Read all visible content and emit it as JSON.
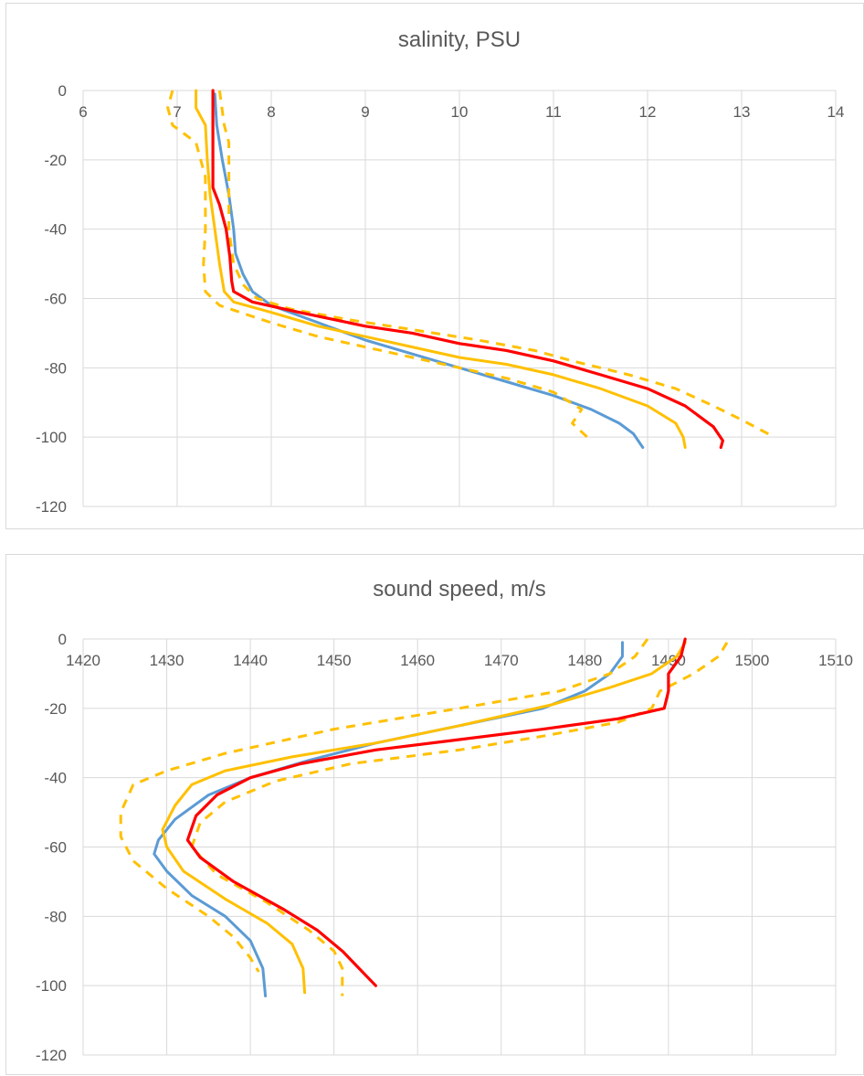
{
  "colors": {
    "blue": "#5b9bd5",
    "gold": "#ffc000",
    "red": "#ff0000",
    "grid": "#d9d9d9",
    "text": "#595959"
  },
  "chart_data": [
    {
      "type": "line",
      "title": "salinity, PSU",
      "xlabel": "",
      "ylabel": "",
      "xlim": [
        6,
        14
      ],
      "ylim": [
        -120,
        0
      ],
      "xticks": [
        "6",
        "7",
        "8",
        "9",
        "10",
        "11",
        "12",
        "13",
        "14"
      ],
      "yticks": [
        "0",
        "-20",
        "-40",
        "-60",
        "-80",
        "-100",
        "-120"
      ],
      "grid": true,
      "x_axis_position": "top",
      "series": [
        {
          "color": "#5b9bd5",
          "style": "solid",
          "points": [
            [
              7.4,
              -1
            ],
            [
              7.42,
              -10
            ],
            [
              7.48,
              -20
            ],
            [
              7.55,
              -30
            ],
            [
              7.6,
              -40
            ],
            [
              7.62,
              -47
            ],
            [
              7.7,
              -53
            ],
            [
              7.8,
              -58
            ],
            [
              8.0,
              -62
            ],
            [
              8.5,
              -67
            ],
            [
              9.0,
              -72
            ],
            [
              9.5,
              -76
            ],
            [
              10.0,
              -80
            ],
            [
              10.5,
              -84
            ],
            [
              11.0,
              -88
            ],
            [
              11.4,
              -92
            ],
            [
              11.7,
              -96
            ],
            [
              11.85,
              -99
            ],
            [
              11.95,
              -103
            ]
          ]
        },
        {
          "color": "#ffc000",
          "style": "solid",
          "points": [
            [
              7.2,
              0
            ],
            [
              7.2,
              -5
            ],
            [
              7.3,
              -10
            ],
            [
              7.32,
              -20
            ],
            [
              7.35,
              -30
            ],
            [
              7.4,
              -40
            ],
            [
              7.45,
              -50
            ],
            [
              7.5,
              -58
            ],
            [
              7.6,
              -61
            ],
            [
              8.0,
              -64
            ],
            [
              8.5,
              -68
            ],
            [
              9.0,
              -71
            ],
            [
              9.5,
              -74
            ],
            [
              10.0,
              -77
            ],
            [
              10.5,
              -79
            ],
            [
              11.0,
              -82
            ],
            [
              11.5,
              -86
            ],
            [
              12.0,
              -91
            ],
            [
              12.3,
              -96
            ],
            [
              12.38,
              -100
            ],
            [
              12.4,
              -103
            ]
          ]
        },
        {
          "color": "#ffc000",
          "style": "dashed",
          "points": [
            [
              6.95,
              0
            ],
            [
              6.9,
              -5
            ],
            [
              6.95,
              -10
            ],
            [
              7.2,
              -15
            ],
            [
              7.3,
              -25
            ],
            [
              7.3,
              -40
            ],
            [
              7.28,
              -50
            ],
            [
              7.3,
              -58
            ],
            [
              7.45,
              -62
            ],
            [
              8.0,
              -67
            ],
            [
              8.5,
              -71
            ],
            [
              9.0,
              -74
            ],
            [
              9.5,
              -77
            ],
            [
              10.0,
              -80
            ],
            [
              10.5,
              -83
            ],
            [
              11.0,
              -87
            ],
            [
              11.3,
              -92
            ],
            [
              11.2,
              -96
            ],
            [
              11.4,
              -101
            ]
          ]
        },
        {
          "color": "#ffc000",
          "style": "dashed",
          "points": [
            [
              7.45,
              0
            ],
            [
              7.5,
              -10
            ],
            [
              7.55,
              -15
            ],
            [
              7.55,
              -25
            ],
            [
              7.55,
              -40
            ],
            [
              7.6,
              -50
            ],
            [
              7.7,
              -56
            ],
            [
              7.85,
              -60
            ],
            [
              8.2,
              -63
            ],
            [
              8.8,
              -66
            ],
            [
              9.5,
              -69
            ],
            [
              10.2,
              -72
            ],
            [
              10.8,
              -75
            ],
            [
              11.2,
              -78
            ],
            [
              11.8,
              -82
            ],
            [
              12.3,
              -86
            ],
            [
              12.7,
              -91
            ],
            [
              13.0,
              -95
            ],
            [
              13.35,
              -100
            ]
          ]
        },
        {
          "color": "#ff0000",
          "style": "solid",
          "points": [
            [
              7.38,
              0
            ],
            [
              7.38,
              -10
            ],
            [
              7.38,
              -20
            ],
            [
              7.38,
              -28
            ],
            [
              7.45,
              -33
            ],
            [
              7.52,
              -40
            ],
            [
              7.56,
              -48
            ],
            [
              7.58,
              -55
            ],
            [
              7.6,
              -58
            ],
            [
              7.8,
              -61
            ],
            [
              8.3,
              -64
            ],
            [
              9.0,
              -68
            ],
            [
              9.5,
              -70
            ],
            [
              10.0,
              -73
            ],
            [
              10.5,
              -75
            ],
            [
              11.0,
              -78
            ],
            [
              11.5,
              -82
            ],
            [
              12.0,
              -86
            ],
            [
              12.4,
              -91
            ],
            [
              12.7,
              -97
            ],
            [
              12.8,
              -101
            ],
            [
              12.78,
              -103
            ]
          ]
        }
      ]
    },
    {
      "type": "line",
      "title": "sound speed, m/s",
      "xlabel": "",
      "ylabel": "",
      "xlim": [
        1420,
        1510
      ],
      "ylim": [
        -120,
        0
      ],
      "xticks": [
        "1420",
        "1430",
        "1440",
        "1450",
        "1460",
        "1470",
        "1480",
        "1490",
        "1500",
        "1510"
      ],
      "yticks": [
        "0",
        "-20",
        "-40",
        "-60",
        "-80",
        "-100",
        "-120"
      ],
      "grid": true,
      "x_axis_position": "top",
      "series": [
        {
          "color": "#5b9bd5",
          "style": "solid",
          "points": [
            [
              1484.5,
              -1
            ],
            [
              1484.5,
              -5
            ],
            [
              1483,
              -10
            ],
            [
              1480,
              -15
            ],
            [
              1475,
              -20
            ],
            [
              1465,
              -25
            ],
            [
              1455,
              -30
            ],
            [
              1447,
              -35
            ],
            [
              1440,
              -40
            ],
            [
              1435,
              -45
            ],
            [
              1431,
              -52
            ],
            [
              1429,
              -58
            ],
            [
              1428.5,
              -62
            ],
            [
              1430,
              -67
            ],
            [
              1433,
              -74
            ],
            [
              1437,
              -80
            ],
            [
              1440,
              -87
            ],
            [
              1441.5,
              -95
            ],
            [
              1441.8,
              -103
            ]
          ]
        },
        {
          "color": "#ffc000",
          "style": "solid",
          "points": [
            [
              1492,
              -1
            ],
            [
              1491,
              -5
            ],
            [
              1488,
              -10
            ],
            [
              1483,
              -14
            ],
            [
              1476,
              -19
            ],
            [
              1465,
              -25
            ],
            [
              1455,
              -30
            ],
            [
              1445,
              -34
            ],
            [
              1437,
              -38
            ],
            [
              1433,
              -42
            ],
            [
              1431,
              -48
            ],
            [
              1429.5,
              -55
            ],
            [
              1430,
              -60
            ],
            [
              1432,
              -67
            ],
            [
              1437,
              -75
            ],
            [
              1442,
              -82
            ],
            [
              1445,
              -88
            ],
            [
              1446.3,
              -95
            ],
            [
              1446.5,
              -102
            ]
          ]
        },
        {
          "color": "#ffc000",
          "style": "dashed",
          "points": [
            [
              1487.5,
              0
            ],
            [
              1486,
              -5
            ],
            [
              1483,
              -10
            ],
            [
              1477,
              -15
            ],
            [
              1465,
              -20
            ],
            [
              1450,
              -26
            ],
            [
              1437,
              -33
            ],
            [
              1430,
              -38
            ],
            [
              1426,
              -42
            ],
            [
              1424.5,
              -50
            ],
            [
              1424.5,
              -57
            ],
            [
              1426,
              -64
            ],
            [
              1430,
              -72
            ],
            [
              1435,
              -80
            ],
            [
              1438,
              -86
            ],
            [
              1440,
              -92
            ],
            [
              1441,
              -96
            ]
          ]
        },
        {
          "color": "#ffc000",
          "style": "dashed",
          "points": [
            [
              1497,
              -1
            ],
            [
              1496,
              -5
            ],
            [
              1493,
              -10
            ],
            [
              1489,
              -15
            ],
            [
              1488,
              -20
            ],
            [
              1484,
              -24
            ],
            [
              1475,
              -28
            ],
            [
              1465,
              -32
            ],
            [
              1452,
              -36
            ],
            [
              1443,
              -41
            ],
            [
              1437,
              -47
            ],
            [
              1434,
              -53
            ],
            [
              1433,
              -60
            ],
            [
              1436,
              -68
            ],
            [
              1442,
              -76
            ],
            [
              1447,
              -84
            ],
            [
              1450,
              -90
            ],
            [
              1451,
              -95
            ],
            [
              1451,
              -103
            ]
          ]
        },
        {
          "color": "#ff0000",
          "style": "solid",
          "points": [
            [
              1492,
              0
            ],
            [
              1491.5,
              -5
            ],
            [
              1490,
              -10
            ],
            [
              1490,
              -15
            ],
            [
              1489.5,
              -20
            ],
            [
              1484,
              -23
            ],
            [
              1475,
              -26
            ],
            [
              1465,
              -29
            ],
            [
              1455,
              -32
            ],
            [
              1446,
              -36
            ],
            [
              1440,
              -40
            ],
            [
              1436,
              -45
            ],
            [
              1433.5,
              -51
            ],
            [
              1432.5,
              -58
            ],
            [
              1434,
              -63
            ],
            [
              1438,
              -70
            ],
            [
              1444,
              -78
            ],
            [
              1448,
              -84
            ],
            [
              1451,
              -90
            ],
            [
              1453,
              -95
            ],
            [
              1455,
              -100
            ]
          ]
        }
      ]
    }
  ]
}
